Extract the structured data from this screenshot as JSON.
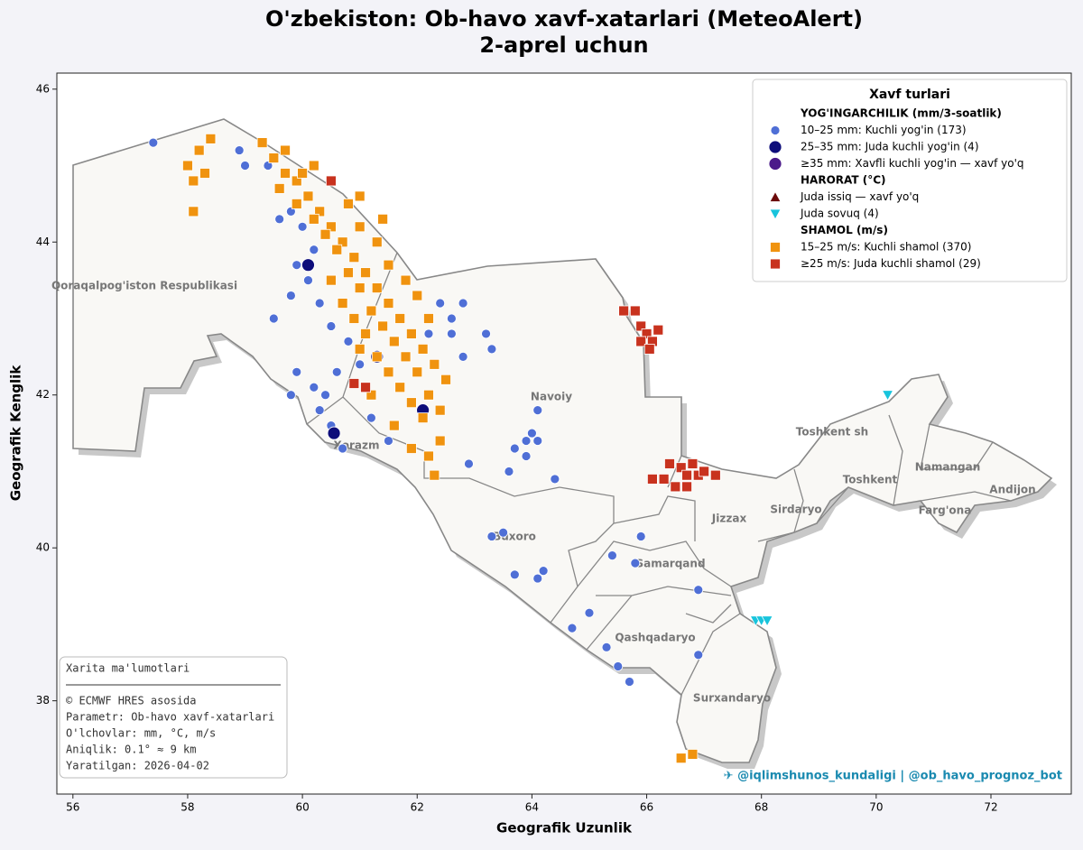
{
  "chart_data": {
    "type": "scatter",
    "title": "O'zbekiston: Ob-havo xavf-xatarlari (MeteoAlert)",
    "subtitle": "2-aprel uchun",
    "x_label": "Geografik Uzunlik",
    "y_label": "Geografik Kenglik",
    "xlim": [
      55.72,
      73.4
    ],
    "ylim": [
      36.78,
      46.21
    ],
    "xticks": [
      56,
      58,
      60,
      62,
      64,
      66,
      68,
      70,
      72
    ],
    "yticks": [
      38,
      40,
      42,
      44,
      46
    ],
    "legend": {
      "title": "Xavf turlari",
      "sections": [
        "YOG'INGARCHILIK  (mm/3-soatlik)",
        "HARORAT  (°C)",
        "SHAMOL  (m/s)"
      ],
      "position": "upper right"
    },
    "regions": [
      "Qoraqalpog'iston Respublikasi",
      "Navoiy",
      "Xorazm",
      "Buxoro",
      "Samarqand",
      "Jizzax",
      "Sirdaryo",
      "Toshkent sh",
      "Toshkent",
      "Namangan",
      "Andijon",
      "Farg'ona",
      "Qashqadaryo",
      "Surxandaryo"
    ],
    "series": [
      {
        "name": "10–25 mm:  Kuchli yog'in  (173)",
        "color": "#4f6fd6",
        "marker": "o",
        "x": [
          57.4,
          58.9,
          59.0,
          59.4,
          59.8,
          59.6,
          60.0,
          60.2,
          59.9,
          60.1,
          59.8,
          60.3,
          59.5,
          60.5,
          60.8,
          61.0,
          60.6,
          60.2,
          59.9,
          60.3,
          60.5,
          60.7,
          61.2,
          61.5,
          62.2,
          62.4,
          62.6,
          62.8,
          62.6,
          62.8,
          63.2,
          63.3,
          62.9,
          63.6,
          63.9,
          64.0,
          64.1,
          63.7,
          64.1,
          63.9,
          64.4,
          63.3,
          63.5,
          63.7,
          64.1,
          64.2,
          65.4,
          65.8,
          65.9,
          66.9,
          65.0,
          64.7,
          65.3,
          65.5,
          65.7,
          66.9,
          59.8,
          60.4
        ],
        "values": [
          45.3,
          45.2,
          45.0,
          45.0,
          44.4,
          44.3,
          44.2,
          43.9,
          43.7,
          43.5,
          43.3,
          43.2,
          43.0,
          42.9,
          42.7,
          42.4,
          42.3,
          42.1,
          42.3,
          41.8,
          41.6,
          41.3,
          41.7,
          41.4,
          42.8,
          43.2,
          43.0,
          42.5,
          42.8,
          43.2,
          42.8,
          42.6,
          41.1,
          41.0,
          41.2,
          41.5,
          41.8,
          41.3,
          41.4,
          41.4,
          40.9,
          40.15,
          40.2,
          39.65,
          39.6,
          39.7,
          39.9,
          39.8,
          40.15,
          39.45,
          39.15,
          38.95,
          38.7,
          38.45,
          38.25,
          38.6,
          42.0,
          42.0
        ]
      },
      {
        "name": "25–35 mm:  Juda kuchli yog'in  (4)",
        "color": "#0d0d7a",
        "marker": "O",
        "x": [
          60.1,
          61.3,
          62.1,
          60.55
        ],
        "values": [
          43.7,
          42.5,
          41.8,
          41.5
        ]
      },
      {
        "name": "≥35 mm:    Xavfli kuchli yog'in  — xavf yo'q",
        "color": "#4b1a8a",
        "marker": "O",
        "x": [],
        "values": []
      },
      {
        "name": "Juda issiq  — xavf yo'q",
        "color": "#6b0a0a",
        "marker": "^",
        "x": [],
        "values": []
      },
      {
        "name": "Juda sovuq  (4)",
        "color": "#18c4dc",
        "marker": "v",
        "x": [
          70.2,
          67.9,
          68.0,
          68.1
        ],
        "values": [
          42.0,
          39.05,
          39.05,
          39.05
        ]
      },
      {
        "name": "15–25 m/s:  Kuchli shamol  (370)",
        "color": "#f0930f",
        "marker": "s",
        "x": [
          58.0,
          58.2,
          58.4,
          58.1,
          58.3,
          58.1,
          59.3,
          59.5,
          59.7,
          59.9,
          60.1,
          60.3,
          60.5,
          60.7,
          60.9,
          61.1,
          61.3,
          61.5,
          61.7,
          61.9,
          62.1,
          62.3,
          62.5,
          59.6,
          59.9,
          60.2,
          60.4,
          60.6,
          60.8,
          61.0,
          61.2,
          61.4,
          61.6,
          61.8,
          62.0,
          62.2,
          62.4,
          60.5,
          60.7,
          60.9,
          61.1,
          61.3,
          61.5,
          61.7,
          61.9,
          62.1,
          61.2,
          61.0,
          61.6,
          61.9,
          62.2,
          62.4,
          62.3,
          60.2,
          60.5,
          60.8,
          61.0,
          61.3,
          61.5,
          61.8,
          62.0,
          62.2,
          61.0,
          61.4,
          59.7,
          60.0,
          66.6,
          66.8
        ],
        "values": [
          45.0,
          45.2,
          45.35,
          44.8,
          44.9,
          44.4,
          45.3,
          45.1,
          44.9,
          44.8,
          44.6,
          44.4,
          44.2,
          44.0,
          43.8,
          43.6,
          43.4,
          43.2,
          43.0,
          42.8,
          42.6,
          42.4,
          42.2,
          44.7,
          44.5,
          44.3,
          44.1,
          43.9,
          43.6,
          43.4,
          43.1,
          42.9,
          42.7,
          42.5,
          42.3,
          42.0,
          41.8,
          43.5,
          43.2,
          43.0,
          42.8,
          42.5,
          42.3,
          42.1,
          41.9,
          41.7,
          42.0,
          42.6,
          41.6,
          41.3,
          41.2,
          41.4,
          40.95,
          45.0,
          44.8,
          44.5,
          44.2,
          44.0,
          43.7,
          43.5,
          43.3,
          43.0,
          44.6,
          44.3,
          45.2,
          44.9,
          37.25,
          37.3
        ]
      },
      {
        "name": "≥25 m/s:    Juda kuchli shamol  (29)",
        "color": "#c8321e",
        "marker": "s",
        "x": [
          60.5,
          60.9,
          61.1,
          65.6,
          65.8,
          65.9,
          66.0,
          66.1,
          65.9,
          66.05,
          66.2,
          66.1,
          66.3,
          66.4,
          66.5,
          66.6,
          66.7,
          66.8,
          66.9,
          67.0,
          67.2,
          66.7
        ],
        "values": [
          44.8,
          42.15,
          42.1,
          43.1,
          43.1,
          42.9,
          42.8,
          42.7,
          42.7,
          42.6,
          42.85,
          40.9,
          40.9,
          41.1,
          40.8,
          41.05,
          40.95,
          41.1,
          40.95,
          41.0,
          40.95,
          40.8
        ]
      }
    ]
  },
  "info_box": {
    "title": "Xarita ma'lumotlari",
    "lines": [
      "© ECMWF HRES asosida",
      "Parametr: Ob-havo xavf-xatarlari",
      "O'lchovlar: mm, °C, m/s",
      "Aniqlik: 0.1° ≈ 9 km",
      "Yaratilgan: 2026-04-02"
    ]
  },
  "credits": "✈ @iqlimshunos_kundaligi  |  @ob_havo_prognoz_bot"
}
